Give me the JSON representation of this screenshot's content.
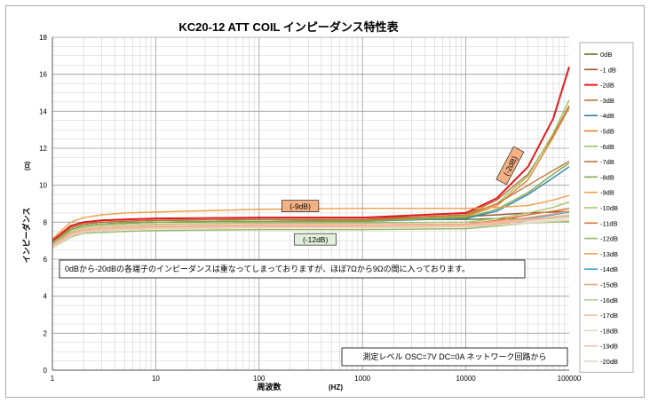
{
  "chart_data": {
    "type": "line",
    "title": "KC20-12 ATT COIL インピーダンス特性表",
    "xlabel": "周波数",
    "xunit": "(HZ)",
    "ylabel": "インピーダンス",
    "yunit": "(Ω)",
    "x_scale": "log",
    "xlim": [
      1,
      100000
    ],
    "ylim": [
      0,
      18
    ],
    "x_ticks": [
      "1",
      "10",
      "100",
      "1000",
      "10000",
      "100000"
    ],
    "y_ticks": [
      "0",
      "2",
      "4",
      "6",
      "8",
      "10",
      "12",
      "14",
      "16",
      "18"
    ],
    "grid": true,
    "legend_position": "right",
    "x": [
      1,
      1.5,
      2,
      3,
      5,
      10,
      100,
      1000,
      10000,
      20000,
      40000,
      70000,
      100000
    ],
    "series": [
      {
        "name": "0dB",
        "color": "#5a7a2a",
        "values": [
          6.9,
          7.7,
          7.9,
          8.0,
          8.05,
          8.1,
          8.15,
          8.15,
          8.15,
          8.2,
          8.2,
          8.25,
          8.3
        ]
      },
      {
        "name": "-1 dB",
        "color": "#a0522d",
        "values": [
          7.0,
          7.8,
          8.0,
          8.1,
          8.15,
          8.2,
          8.25,
          8.25,
          8.3,
          8.4,
          8.5,
          8.55,
          8.6
        ]
      },
      {
        "name": "-2dB",
        "color": "#e41a1c",
        "values": [
          7.0,
          7.8,
          8.0,
          8.1,
          8.15,
          8.2,
          8.25,
          8.25,
          8.5,
          9.3,
          11.0,
          13.6,
          16.4
        ]
      },
      {
        "name": "-3dB",
        "color": "#b9713e",
        "values": [
          6.9,
          7.7,
          7.9,
          8.0,
          8.05,
          8.1,
          8.15,
          8.15,
          8.4,
          9.2,
          10.6,
          12.7,
          14.3
        ]
      },
      {
        "name": "-4dB",
        "color": "#2f7fb1",
        "values": [
          6.9,
          7.6,
          7.8,
          7.9,
          7.95,
          8.0,
          8.05,
          8.05,
          8.2,
          8.6,
          9.5,
          10.4,
          11.0
        ]
      },
      {
        "name": "-5dB",
        "color": "#e87f2a",
        "values": [
          6.9,
          7.6,
          7.8,
          7.9,
          7.95,
          8.0,
          8.05,
          8.1,
          8.3,
          8.9,
          10.3,
          12.6,
          14.2
        ]
      },
      {
        "name": "-6dB",
        "color": "#9ac05a",
        "values": [
          6.9,
          7.6,
          7.8,
          7.9,
          7.95,
          8.0,
          8.05,
          8.1,
          8.35,
          9.0,
          10.5,
          12.8,
          14.6
        ]
      },
      {
        "name": "-7dB",
        "color": "#c07840",
        "values": [
          6.9,
          7.6,
          7.8,
          7.9,
          7.95,
          8.0,
          8.05,
          8.1,
          8.4,
          9.0,
          10.0,
          10.8,
          11.3
        ]
      },
      {
        "name": "-8dB",
        "color": "#7ea84a",
        "values": [
          6.9,
          7.6,
          7.8,
          7.9,
          7.95,
          8.0,
          8.05,
          8.05,
          8.25,
          8.7,
          9.6,
          10.6,
          11.2
        ]
      },
      {
        "name": "-9dB",
        "color": "#f0a04a",
        "values": [
          7.1,
          8.0,
          8.25,
          8.4,
          8.5,
          8.55,
          8.7,
          8.75,
          8.75,
          8.8,
          8.9,
          9.2,
          9.45
        ]
      },
      {
        "name": "-10dB",
        "color": "#a9c470",
        "values": [
          6.8,
          7.5,
          7.7,
          7.8,
          7.85,
          7.9,
          7.95,
          7.95,
          8.0,
          8.2,
          8.5,
          8.8,
          9.1
        ]
      },
      {
        "name": "-11dB",
        "color": "#d9783a",
        "values": [
          6.8,
          7.4,
          7.6,
          7.7,
          7.75,
          7.8,
          7.85,
          7.85,
          7.9,
          8.1,
          8.4,
          8.6,
          8.75
        ]
      },
      {
        "name": "-12dB",
        "color": "#96b860",
        "values": [
          6.6,
          7.2,
          7.4,
          7.45,
          7.5,
          7.55,
          7.6,
          7.6,
          7.65,
          7.8,
          7.95,
          8.0,
          8.05
        ]
      },
      {
        "name": "-13dB",
        "color": "#e8a060",
        "values": [
          6.7,
          7.3,
          7.5,
          7.55,
          7.6,
          7.65,
          7.7,
          7.7,
          7.75,
          7.9,
          8.1,
          8.25,
          8.35
        ]
      },
      {
        "name": "-14dB",
        "color": "#3aa0d0",
        "values": [
          6.8,
          7.4,
          7.6,
          7.65,
          7.7,
          7.75,
          7.8,
          7.8,
          7.85,
          8.0,
          8.2,
          8.4,
          8.55
        ]
      },
      {
        "name": "-15dB",
        "color": "#f4a582",
        "values": [
          6.8,
          7.4,
          7.6,
          7.7,
          7.75,
          7.8,
          7.85,
          7.85,
          7.9,
          8.05,
          8.25,
          8.45,
          8.6
        ]
      },
      {
        "name": "-16dB",
        "color": "#b5cf8e",
        "values": [
          6.7,
          7.3,
          7.5,
          7.6,
          7.65,
          7.7,
          7.75,
          7.75,
          7.8,
          7.95,
          8.1,
          8.25,
          8.35
        ]
      },
      {
        "name": "-17dB",
        "color": "#f2c09a",
        "values": [
          6.7,
          7.35,
          7.55,
          7.65,
          7.7,
          7.75,
          7.8,
          7.8,
          7.85,
          8.0,
          8.15,
          8.3,
          8.4
        ]
      },
      {
        "name": "-18dB",
        "color": "#d8e4c0",
        "values": [
          6.6,
          7.25,
          7.45,
          7.55,
          7.6,
          7.65,
          7.7,
          7.7,
          7.75,
          7.85,
          8.0,
          8.1,
          8.2
        ]
      },
      {
        "name": "-19dB",
        "color": "#f7b8a8",
        "values": [
          6.7,
          7.3,
          7.5,
          7.6,
          7.65,
          7.7,
          7.75,
          7.75,
          7.8,
          7.95,
          8.1,
          8.2,
          8.3
        ]
      },
      {
        "name": "-20dB",
        "color": "#e0d8c0",
        "values": [
          6.6,
          7.25,
          7.45,
          7.55,
          7.6,
          7.65,
          7.7,
          7.7,
          7.75,
          7.85,
          7.95,
          8.05,
          8.1
        ]
      }
    ],
    "annotations": [
      {
        "text": "(-9dB)",
        "x": 250,
        "y": 8.85,
        "fill": "#f4b183",
        "rotate": 0
      },
      {
        "text": "(-12dB)",
        "x": 350,
        "y": 7.05,
        "fill": "#e2efda",
        "rotate": 0
      },
      {
        "text": "(-2dB)",
        "x": 27000,
        "y": 11.05,
        "fill": "#f4b183",
        "rotate": -62
      }
    ],
    "note": "0dBから-20dBの各端子のインピーダンスは重なってしまっておりますが、ほぼ7Ωから9Ωの間に入っております。",
    "footer_note": "測定レベル OSC=7V DC=0A ネットワーク回路から"
  }
}
